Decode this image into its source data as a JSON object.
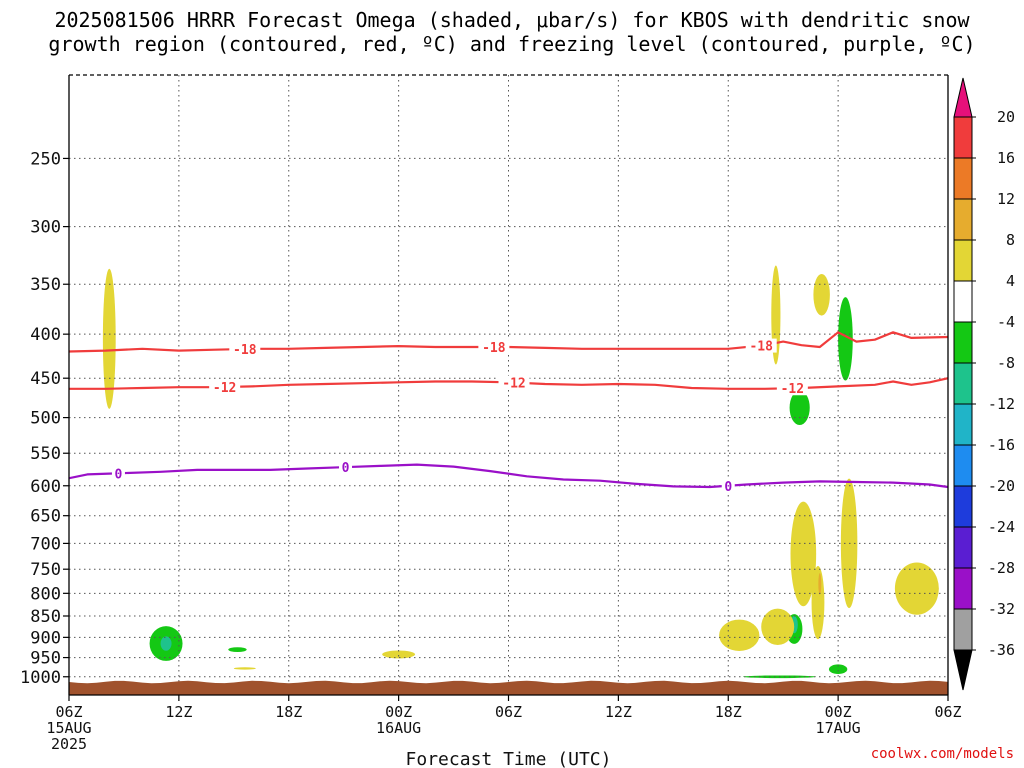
{
  "chart_data": {
    "type": "contour",
    "title_lines": [
      "2025081506 HRRR Forecast Omega (shaded, μbar/s) for KBOS with dendritic snow",
      "growth region (contoured, red, ºC) and freezing level (contoured, purple, ºC)"
    ],
    "xlabel": "Forecast Time (UTC)",
    "ylabel": "",
    "x_ticks": [
      {
        "hour": 0,
        "label": "06Z",
        "sub": [
          "15AUG",
          "2025"
        ]
      },
      {
        "hour": 6,
        "label": "12Z",
        "sub": []
      },
      {
        "hour": 12,
        "label": "18Z",
        "sub": []
      },
      {
        "hour": 18,
        "label": "00Z",
        "sub": [
          "16AUG"
        ]
      },
      {
        "hour": 24,
        "label": "06Z",
        "sub": []
      },
      {
        "hour": 30,
        "label": "12Z",
        "sub": []
      },
      {
        "hour": 36,
        "label": "18Z",
        "sub": []
      },
      {
        "hour": 42,
        "label": "00Z",
        "sub": [
          "17AUG"
        ]
      },
      {
        "hour": 48,
        "label": "06Z",
        "sub": []
      }
    ],
    "xlim": [
      0,
      48
    ],
    "y_ticks": [
      250,
      300,
      350,
      400,
      450,
      500,
      550,
      600,
      650,
      700,
      750,
      800,
      850,
      900,
      950,
      1000
    ],
    "ylim_hPa": [
      200,
      1050
    ],
    "y_scale": "log",
    "grid": true,
    "contours": [
      {
        "name": "-18",
        "color": "#f03c3c",
        "x": [
          0,
          2,
          4,
          6,
          8,
          10,
          12,
          14,
          16,
          18,
          20,
          22,
          24,
          26,
          28,
          30,
          32,
          34,
          36,
          38,
          39,
          40,
          41,
          42,
          43,
          44,
          45,
          46,
          48
        ],
        "p": [
          419,
          418,
          416,
          418,
          417,
          416,
          416,
          415,
          414,
          413,
          414,
          414,
          414,
          415,
          416,
          416,
          416,
          416,
          416,
          412,
          408,
          412,
          414,
          398,
          408,
          406,
          398,
          404,
          403
        ],
        "labels": [
          {
            "x": 9.6,
            "text": "-18"
          },
          {
            "x": 23.2,
            "text": "-18"
          },
          {
            "x": 37.8,
            "text": "-18"
          }
        ]
      },
      {
        "name": "-12",
        "color": "#f03c3c",
        "x": [
          0,
          2,
          4,
          6,
          8,
          10,
          12,
          14,
          16,
          18,
          20,
          22,
          24,
          26,
          28,
          30,
          32,
          34,
          36,
          38,
          40,
          42,
          44,
          45,
          46,
          47,
          48
        ],
        "p": [
          463,
          463,
          462,
          461,
          461,
          460,
          458,
          457,
          456,
          455,
          454,
          454,
          455,
          457,
          458,
          457,
          458,
          462,
          463,
          463,
          462,
          460,
          458,
          454,
          458,
          455,
          450
        ],
        "labels": [
          {
            "x": 8.5,
            "text": "-12"
          },
          {
            "x": 24.3,
            "text": "-12"
          },
          {
            "x": 39.5,
            "text": "-12"
          }
        ]
      },
      {
        "name": "0",
        "color": "#9a10c8",
        "x": [
          0,
          1,
          3,
          5,
          7,
          9,
          11,
          13,
          15,
          17,
          19,
          21,
          23,
          25,
          27,
          29,
          31,
          33,
          35,
          37,
          39,
          41,
          43,
          45,
          47,
          48
        ],
        "p": [
          588,
          582,
          580,
          578,
          575,
          575,
          575,
          573,
          571,
          569,
          567,
          570,
          577,
          585,
          590,
          592,
          597,
          601,
          602,
          598,
          595,
          593,
          594,
          595,
          598,
          602
        ],
        "labels": [
          {
            "x": 2.7,
            "text": "0"
          },
          {
            "x": 15.1,
            "text": "0"
          },
          {
            "x": 36,
            "text": "0"
          }
        ]
      }
    ],
    "omega_regions": [
      {
        "level": "4 to 8",
        "color": "#e3d635",
        "hour": 2.2,
        "p": 405,
        "w_h": 0.35,
        "h_hPa": 150
      },
      {
        "level": "-8 to -4",
        "color": "#14c814",
        "hour": 5.3,
        "p": 915,
        "w_h": 0.9,
        "h_hPa": 85
      },
      {
        "level": "-12 to -8",
        "color": "#1ec38c",
        "hour": 5.3,
        "p": 915,
        "w_h": 0.3,
        "h_hPa": 35
      },
      {
        "level": "-8 to -4",
        "color": "#14c814",
        "hour": 9.2,
        "p": 930,
        "w_h": 0.5,
        "h_hPa": 12
      },
      {
        "level": "4 to 8",
        "color": "#e3d635",
        "hour": 9.6,
        "p": 978,
        "w_h": 0.6,
        "h_hPa": 6
      },
      {
        "level": "4 to 8",
        "color": "#e3d635",
        "hour": 18,
        "p": 942,
        "w_h": 0.9,
        "h_hPa": 20
      },
      {
        "level": "4 to 8",
        "color": "#e3d635",
        "hour": 38.6,
        "p": 380,
        "w_h": 0.25,
        "h_hPa": 100
      },
      {
        "level": "4 to 8",
        "color": "#e3d635",
        "hour": 41.1,
        "p": 360,
        "w_h": 0.45,
        "h_hPa": 40
      },
      {
        "level": "-8 to -4",
        "color": "#14c814",
        "hour": 42.4,
        "p": 405,
        "w_h": 0.4,
        "h_hPa": 90
      },
      {
        "level": "-8 to -4",
        "color": "#14c814",
        "hour": 39.9,
        "p": 487,
        "w_h": 0.55,
        "h_hPa": 45
      },
      {
        "level": "4 to 8",
        "color": "#e3d635",
        "hour": 40.1,
        "p": 720,
        "w_h": 0.7,
        "h_hPa": 200
      },
      {
        "level": "4 to 8",
        "color": "#e3d635",
        "hour": 40.9,
        "p": 820,
        "w_h": 0.35,
        "h_hPa": 160
      },
      {
        "level": "4 to 8",
        "color": "#e3d635",
        "hour": 42.6,
        "p": 700,
        "w_h": 0.45,
        "h_hPa": 240
      },
      {
        "level": "-8 to -4",
        "color": "#14c814",
        "hour": 39.6,
        "p": 880,
        "w_h": 0.45,
        "h_hPa": 70
      },
      {
        "level": "-12 to -8",
        "color": "#1ec38c",
        "hour": 39.6,
        "p": 870,
        "w_h": 0.2,
        "h_hPa": 40
      },
      {
        "level": "4 to 8",
        "color": "#e3d635",
        "hour": 36.6,
        "p": 895,
        "w_h": 1.1,
        "h_hPa": 75
      },
      {
        "level": "4 to 8",
        "color": "#e3d635",
        "hour": 38.7,
        "p": 875,
        "w_h": 0.9,
        "h_hPa": 85
      },
      {
        "level": "-8 to -4",
        "color": "#14c814",
        "hour": 38.8,
        "p": 1000,
        "w_h": 2.0,
        "h_hPa": 7
      },
      {
        "level": "-8 to -4",
        "color": "#14c814",
        "hour": 42,
        "p": 980,
        "w_h": 0.5,
        "h_hPa": 25
      },
      {
        "level": "4 to 8",
        "color": "#e3d635",
        "hour": 46.3,
        "p": 790,
        "w_h": 1.2,
        "h_hPa": 110
      },
      {
        "level": "8 to 12",
        "color": "#e6ac2e",
        "hour": 41,
        "p": 780,
        "w_h": 0.08,
        "h_hPa": 45
      }
    ],
    "colorbar": {
      "labels": [
        "20",
        "16",
        "12",
        "8",
        "4",
        "-4",
        "-8",
        "-12",
        "-16",
        "-20",
        "-24",
        "-28",
        "-32",
        "-36"
      ],
      "colors": [
        "#f03c3c",
        "#ec7a26",
        "#e6ac2e",
        "#e3d635",
        "#ffffff",
        "#14c814",
        "#1ec38c",
        "#20b4c8",
        "#1e8cf0",
        "#1e3cdc",
        "#5a1ed2",
        "#9a10c8",
        "#a0a0a0"
      ],
      "top_triangle": "#e6107a",
      "bottom_triangle": "#000000"
    },
    "ground_color": "#a0522d"
  },
  "credit": "coolwx.com/models"
}
